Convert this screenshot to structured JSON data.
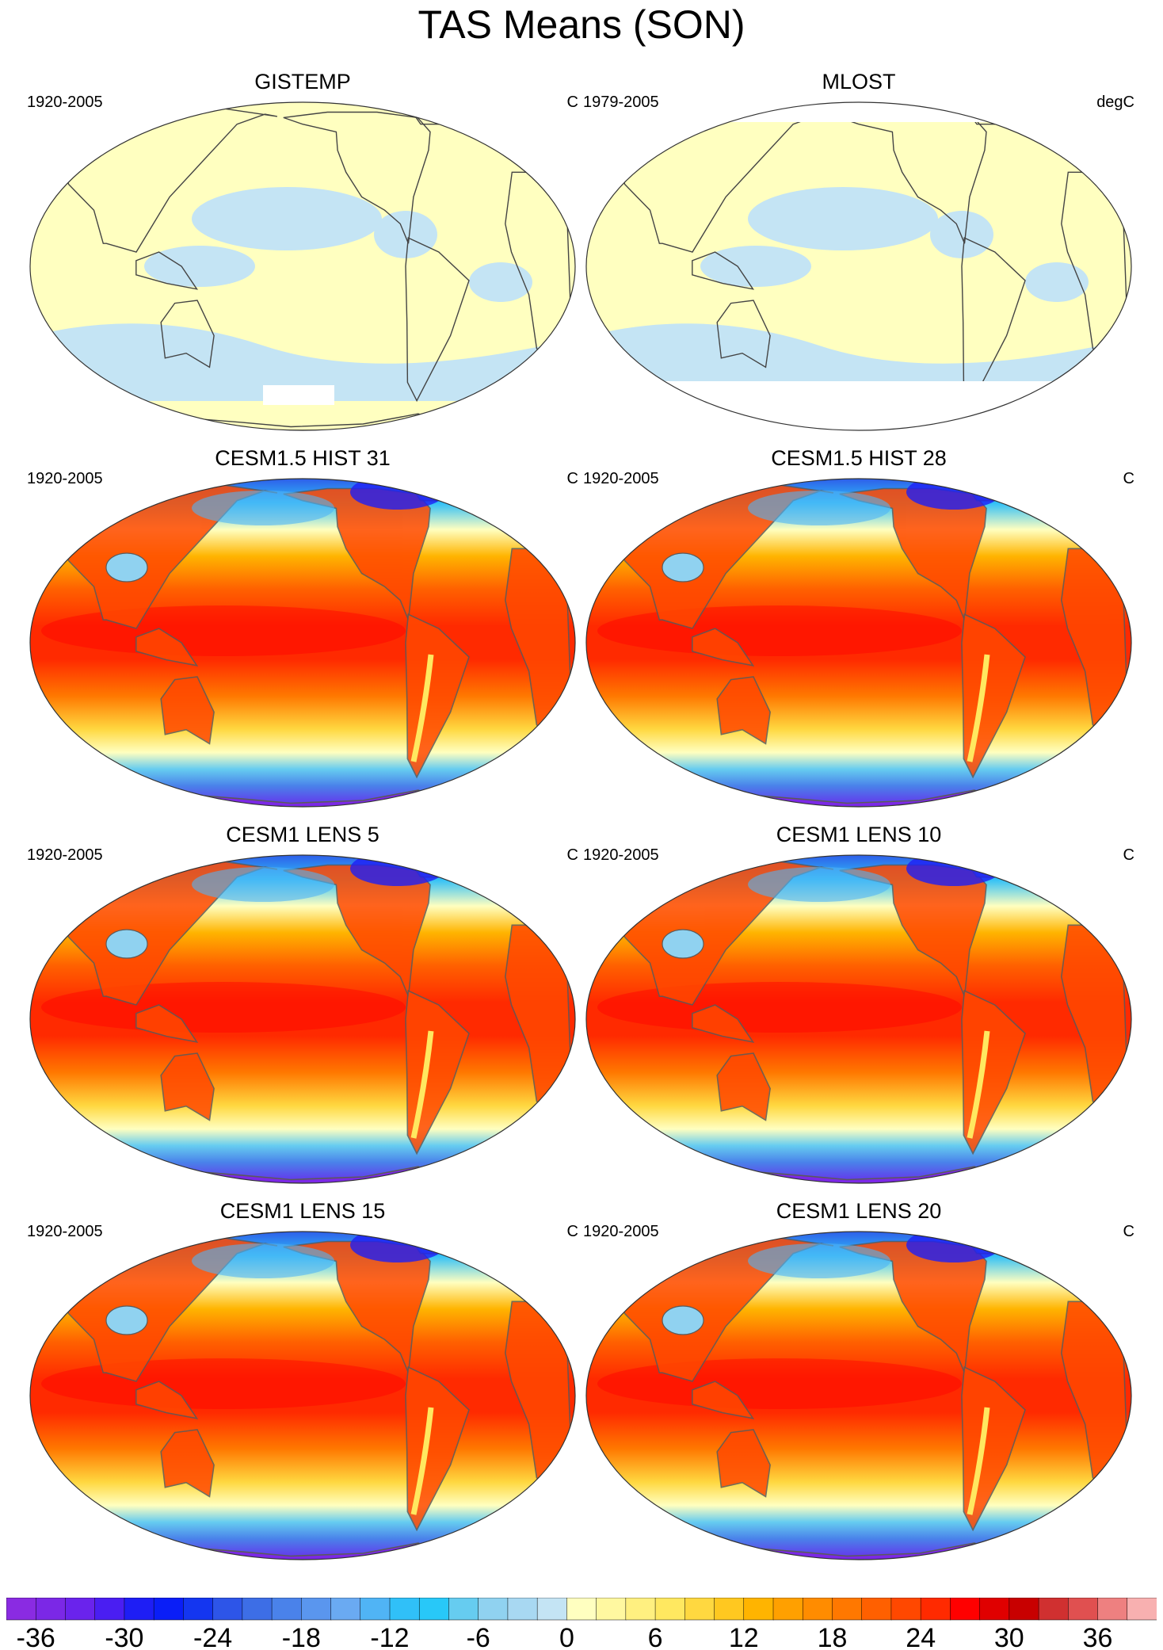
{
  "title": "TAS Means (SON)",
  "panels": [
    {
      "title": "GISTEMP",
      "years": "1920-2005",
      "units": "C",
      "style": "obs",
      "missing": "antarctic-patch"
    },
    {
      "title": "MLOST",
      "years": "1979-2005",
      "units": "degC",
      "style": "obs",
      "missing": "polar"
    },
    {
      "title": "CESM1.5 HIST 31",
      "years": "1920-2005",
      "units": "C",
      "style": "model"
    },
    {
      "title": "CESM1.5 HIST 28",
      "years": "1920-2005",
      "units": "C",
      "style": "model"
    },
    {
      "title": "CESM1 LENS 5",
      "years": "1920-2005",
      "units": "C",
      "style": "model"
    },
    {
      "title": "CESM1 LENS 10",
      "years": "1920-2005",
      "units": "C",
      "style": "model"
    },
    {
      "title": "CESM1 LENS 15",
      "years": "1920-2005",
      "units": "C",
      "style": "model"
    },
    {
      "title": "CESM1 LENS 20",
      "years": "1920-2005",
      "units": "C",
      "style": "model"
    }
  ],
  "colorbar": {
    "tick_labels": [
      "-36",
      "-30",
      "-24",
      "-18",
      "-12",
      "-6",
      "0",
      "6",
      "12",
      "18",
      "24",
      "30",
      "36"
    ],
    "colors": [
      "#8a2be2",
      "#7b28e6",
      "#6a23ec",
      "#4a1ef2",
      "#1e1ef5",
      "#0a1ef7",
      "#1436f0",
      "#2d55e8",
      "#3d6ee6",
      "#4a82ea",
      "#5a96ee",
      "#6aaaf2",
      "#50b4f5",
      "#30c0f8",
      "#28c8f8",
      "#66ccf0",
      "#90d2f0",
      "#a8d8f2",
      "#c4e4f4",
      "#ffffc0",
      "#fff8a0",
      "#fff080",
      "#ffe860",
      "#ffd840",
      "#ffc820",
      "#ffb400",
      "#ffa000",
      "#ff8c00",
      "#ff7800",
      "#ff6000",
      "#ff4800",
      "#ff2a00",
      "#ff0000",
      "#e00000",
      "#c80000",
      "#d03030",
      "#e05050",
      "#ee8080",
      "#f8b0b0"
    ]
  },
  "obs_colors": {
    "land_base": "#ffffc0",
    "ocean_cool": "#c4e4f4",
    "missing": "#ffffff"
  }
}
